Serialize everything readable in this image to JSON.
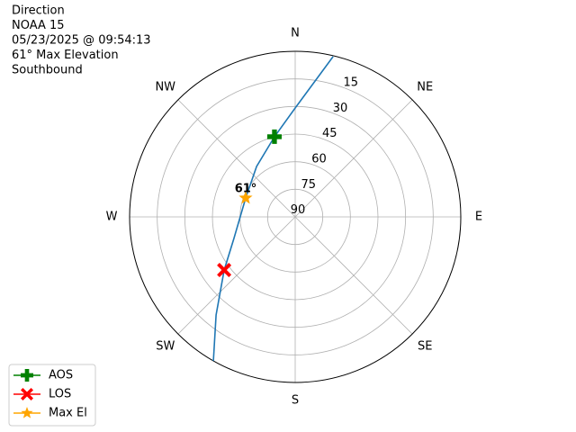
{
  "chart_data": {
    "type": "polar",
    "title_lines": [
      "Direction",
      "NOAA 15",
      "05/23/2025 @ 09:54:13",
      "61° Max Elevation",
      "Southbound"
    ],
    "rlim": [
      90,
      0
    ],
    "rticks": [
      15,
      30,
      45,
      60,
      75,
      90
    ],
    "thetaticks": [
      {
        "value": 0,
        "label": "N"
      },
      {
        "value": 45,
        "label": "NE"
      },
      {
        "value": 90,
        "label": "E"
      },
      {
        "value": 135,
        "label": "SE"
      },
      {
        "value": 180,
        "label": "S"
      },
      {
        "value": 225,
        "label": "SW"
      },
      {
        "value": 270,
        "label": "W"
      },
      {
        "value": 315,
        "label": "NW"
      }
    ],
    "grid": true,
    "track": {
      "color": "#1f77b4",
      "azimuth": [
        13.3,
        0,
        345.5,
        322.5,
        290.9,
        250.6,
        233.2,
        218.9,
        209.6
      ],
      "elevation": [
        0.5,
        30.8,
        45,
        55.5,
        61.2,
        54.7,
        41.8,
        21.5,
        0
      ]
    },
    "series": [
      {
        "name": "AOS",
        "color": "#008000",
        "marker": "plus",
        "azimuth": [
          345.5
        ],
        "elevation": [
          45
        ]
      },
      {
        "name": "LOS",
        "color": "#ff0000",
        "marker": "x",
        "azimuth": [
          233.2
        ],
        "elevation": [
          41.8
        ]
      },
      {
        "name": "Max El",
        "color": "#ffa500",
        "marker": "star",
        "azimuth": [
          290.9
        ],
        "elevation": [
          61.2
        ]
      }
    ],
    "annotation": {
      "text": "61°"
    },
    "legend": "lower left"
  }
}
